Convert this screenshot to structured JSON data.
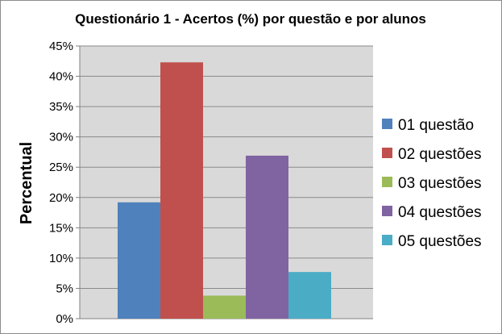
{
  "chart_data": {
    "type": "bar",
    "title": "Questionário 1 - Acertos (%) por questão e por alunos",
    "xlabel": "",
    "ylabel": "Percentual",
    "ylim": [
      0,
      45
    ],
    "y_ticks": [
      "0%",
      "5%",
      "10%",
      "15%",
      "20%",
      "25%",
      "30%",
      "35%",
      "40%",
      "45%"
    ],
    "grid": true,
    "legend_position": "right",
    "plot_background": "#d9d9d9",
    "series": [
      {
        "name": "01 questão",
        "value": 19.2,
        "color": "#4f81bd"
      },
      {
        "name": "02 questões",
        "value": 42.3,
        "color": "#c0504d"
      },
      {
        "name": "03 questões",
        "value": 3.8,
        "color": "#9bbb59"
      },
      {
        "name": "04 questões",
        "value": 26.9,
        "color": "#8064a2"
      },
      {
        "name": "05 questões",
        "value": 7.7,
        "color": "#4bacc6"
      }
    ]
  }
}
